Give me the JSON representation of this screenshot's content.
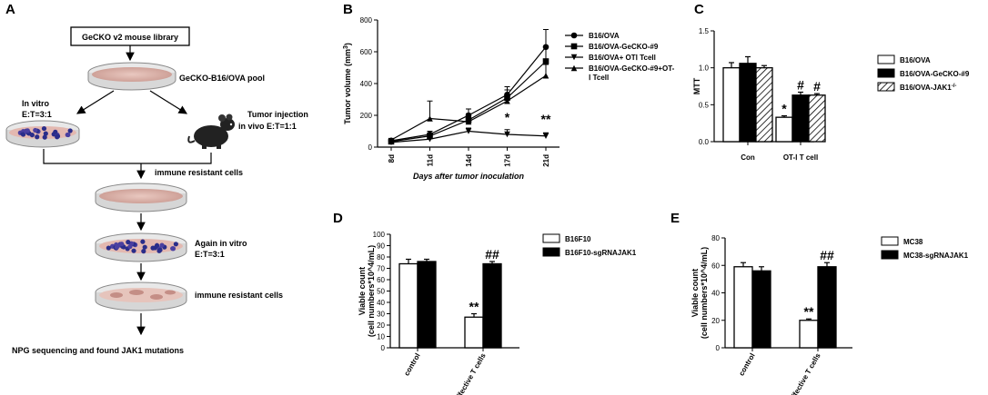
{
  "panels": {
    "a": {
      "letter": "A",
      "library": "GeCKO v2 mouse library",
      "pool": "GeCKO-B16/OVA pool",
      "invitro_line1": "In vitro",
      "invitro_line2": "E:T=3:1",
      "tumor_line1": "Tumor injection",
      "tumor_line2": "in vivo E:T=1:1",
      "resistant1": "immune resistant cells",
      "again_line1": "Again in vitro",
      "again_line2": "E:T=3:1",
      "resistant2": "immune resistant cells",
      "final": "NPG sequencing and found JAK1 mutations"
    },
    "b": {
      "letter": "B"
    },
    "c": {
      "letter": "C"
    },
    "d": {
      "letter": "D"
    },
    "e": {
      "letter": "E"
    }
  },
  "chart_data": [
    {
      "id": "B",
      "type": "line",
      "categories": [
        "8d",
        "11d",
        "14d",
        "17d",
        "21d"
      ],
      "xlabel": "Days after tumor inoculation",
      "ylabel": "Tumor volume (mm3)",
      "ylabel_text": "Tumor volume",
      "ylabel_unit": "(mm",
      "ylabel_sup": "3",
      "ylabel_close": ")",
      "ylim": [
        0,
        800
      ],
      "yticks": [
        0,
        200,
        400,
        600,
        800
      ],
      "series": [
        {
          "name": "B16/OVA",
          "marker": "circle",
          "values": [
            40,
            80,
            200,
            330,
            630
          ],
          "err": [
            10,
            20,
            40,
            50,
            110
          ]
        },
        {
          "name": "B16/OVA-GeCKO-#9",
          "marker": "square",
          "values": [
            35,
            70,
            170,
            310,
            540
          ],
          "err": [
            10,
            20,
            40,
            50,
            90
          ]
        },
        {
          "name": "B16/OVA+ OTⅠ Tcell",
          "marker": "triangle-down",
          "values": [
            30,
            50,
            100,
            80,
            70
          ],
          "err": [
            8,
            15,
            20,
            30,
            20
          ]
        },
        {
          "name": "B16/OVA-GeCKO-#9+OT-Ⅰ Tcell",
          "marker": "triangle-up",
          "values": [
            45,
            180,
            160,
            290,
            450
          ],
          "err": [
            10,
            110,
            40,
            40,
            70
          ]
        }
      ],
      "legend_lines": [
        [
          "B16/OVA"
        ],
        [
          "B16/OVA-GeCKO-#9"
        ],
        [
          "B16/OVA+ OTⅠ Tcell"
        ],
        [
          "B16/OVA-GeCKO-#9+OT-",
          "Ⅰ Tcell"
        ]
      ],
      "annotations": [
        {
          "text": "*",
          "category": "17d",
          "y": 160
        },
        {
          "text": "**",
          "category": "21d",
          "y": 150
        }
      ],
      "legend_position": "right"
    },
    {
      "id": "C",
      "type": "bar",
      "categories": [
        "Con",
        "OT-Ⅰ T cell"
      ],
      "ylabel": "MTT",
      "ylim": [
        0,
        1.5
      ],
      "yticks": [
        "0.0",
        "0.5",
        "1.0",
        "1.5"
      ],
      "series": [
        {
          "name": "B16/OVA",
          "fill": "white",
          "values": [
            1.0,
            0.33
          ],
          "err": [
            0.07,
            0.02
          ]
        },
        {
          "name": "B16/OVA-GeCKO-#9",
          "fill": "black",
          "values": [
            1.06,
            0.63
          ],
          "err": [
            0.09,
            0.04
          ]
        },
        {
          "name": "B16/OVA-JAK1",
          "legend_sup": "-/-",
          "fill": "hatch",
          "values": [
            1.0,
            0.63
          ],
          "err": [
            0.03,
            0.02
          ]
        }
      ],
      "annotations": [
        {
          "text": "*",
          "category_index": 1,
          "series_index": 0
        },
        {
          "text": "#",
          "category_index": 1,
          "series_index": 1
        },
        {
          "text": "#",
          "category_index": 1,
          "series_index": 2
        }
      ],
      "legend_position": "right"
    },
    {
      "id": "D",
      "type": "bar",
      "categories": [
        "control",
        "effective T cells"
      ],
      "ylabel_line1": "Viable count",
      "ylabel_line2": "(cell numbers*10^4/mL)",
      "ylim": [
        0,
        100
      ],
      "yticks": [
        0,
        10,
        20,
        30,
        40,
        50,
        60,
        70,
        80,
        90,
        100
      ],
      "series": [
        {
          "name": "B16F10",
          "fill": "white",
          "values": [
            74,
            27
          ],
          "err": [
            4,
            3
          ]
        },
        {
          "name": "B16F10-sgRNAJAK1",
          "fill": "black",
          "values": [
            76,
            74
          ],
          "err": [
            2,
            2
          ]
        }
      ],
      "annotations": [
        {
          "text": "**",
          "category_index": 1,
          "series_index": 0
        },
        {
          "text": "##",
          "category_index": 1,
          "series_index": 1
        }
      ],
      "legend_position": "right"
    },
    {
      "id": "E",
      "type": "bar",
      "categories": [
        "control",
        "effective T cells"
      ],
      "ylabel_line1": "Viable count",
      "ylabel_line2": "(cell numbers*10^4/mL)",
      "ylim": [
        0,
        80
      ],
      "yticks": [
        0,
        20,
        40,
        60,
        80
      ],
      "series": [
        {
          "name": "MC38",
          "fill": "white",
          "values": [
            59,
            20
          ],
          "err": [
            3,
            1
          ]
        },
        {
          "name": "MC38-sgRNAJAK1",
          "fill": "black",
          "values": [
            56,
            59
          ],
          "err": [
            3,
            3
          ]
        }
      ],
      "annotations": [
        {
          "text": "**",
          "category_index": 1,
          "series_index": 0
        },
        {
          "text": "##",
          "category_index": 1,
          "series_index": 1
        }
      ],
      "legend_position": "right"
    }
  ]
}
